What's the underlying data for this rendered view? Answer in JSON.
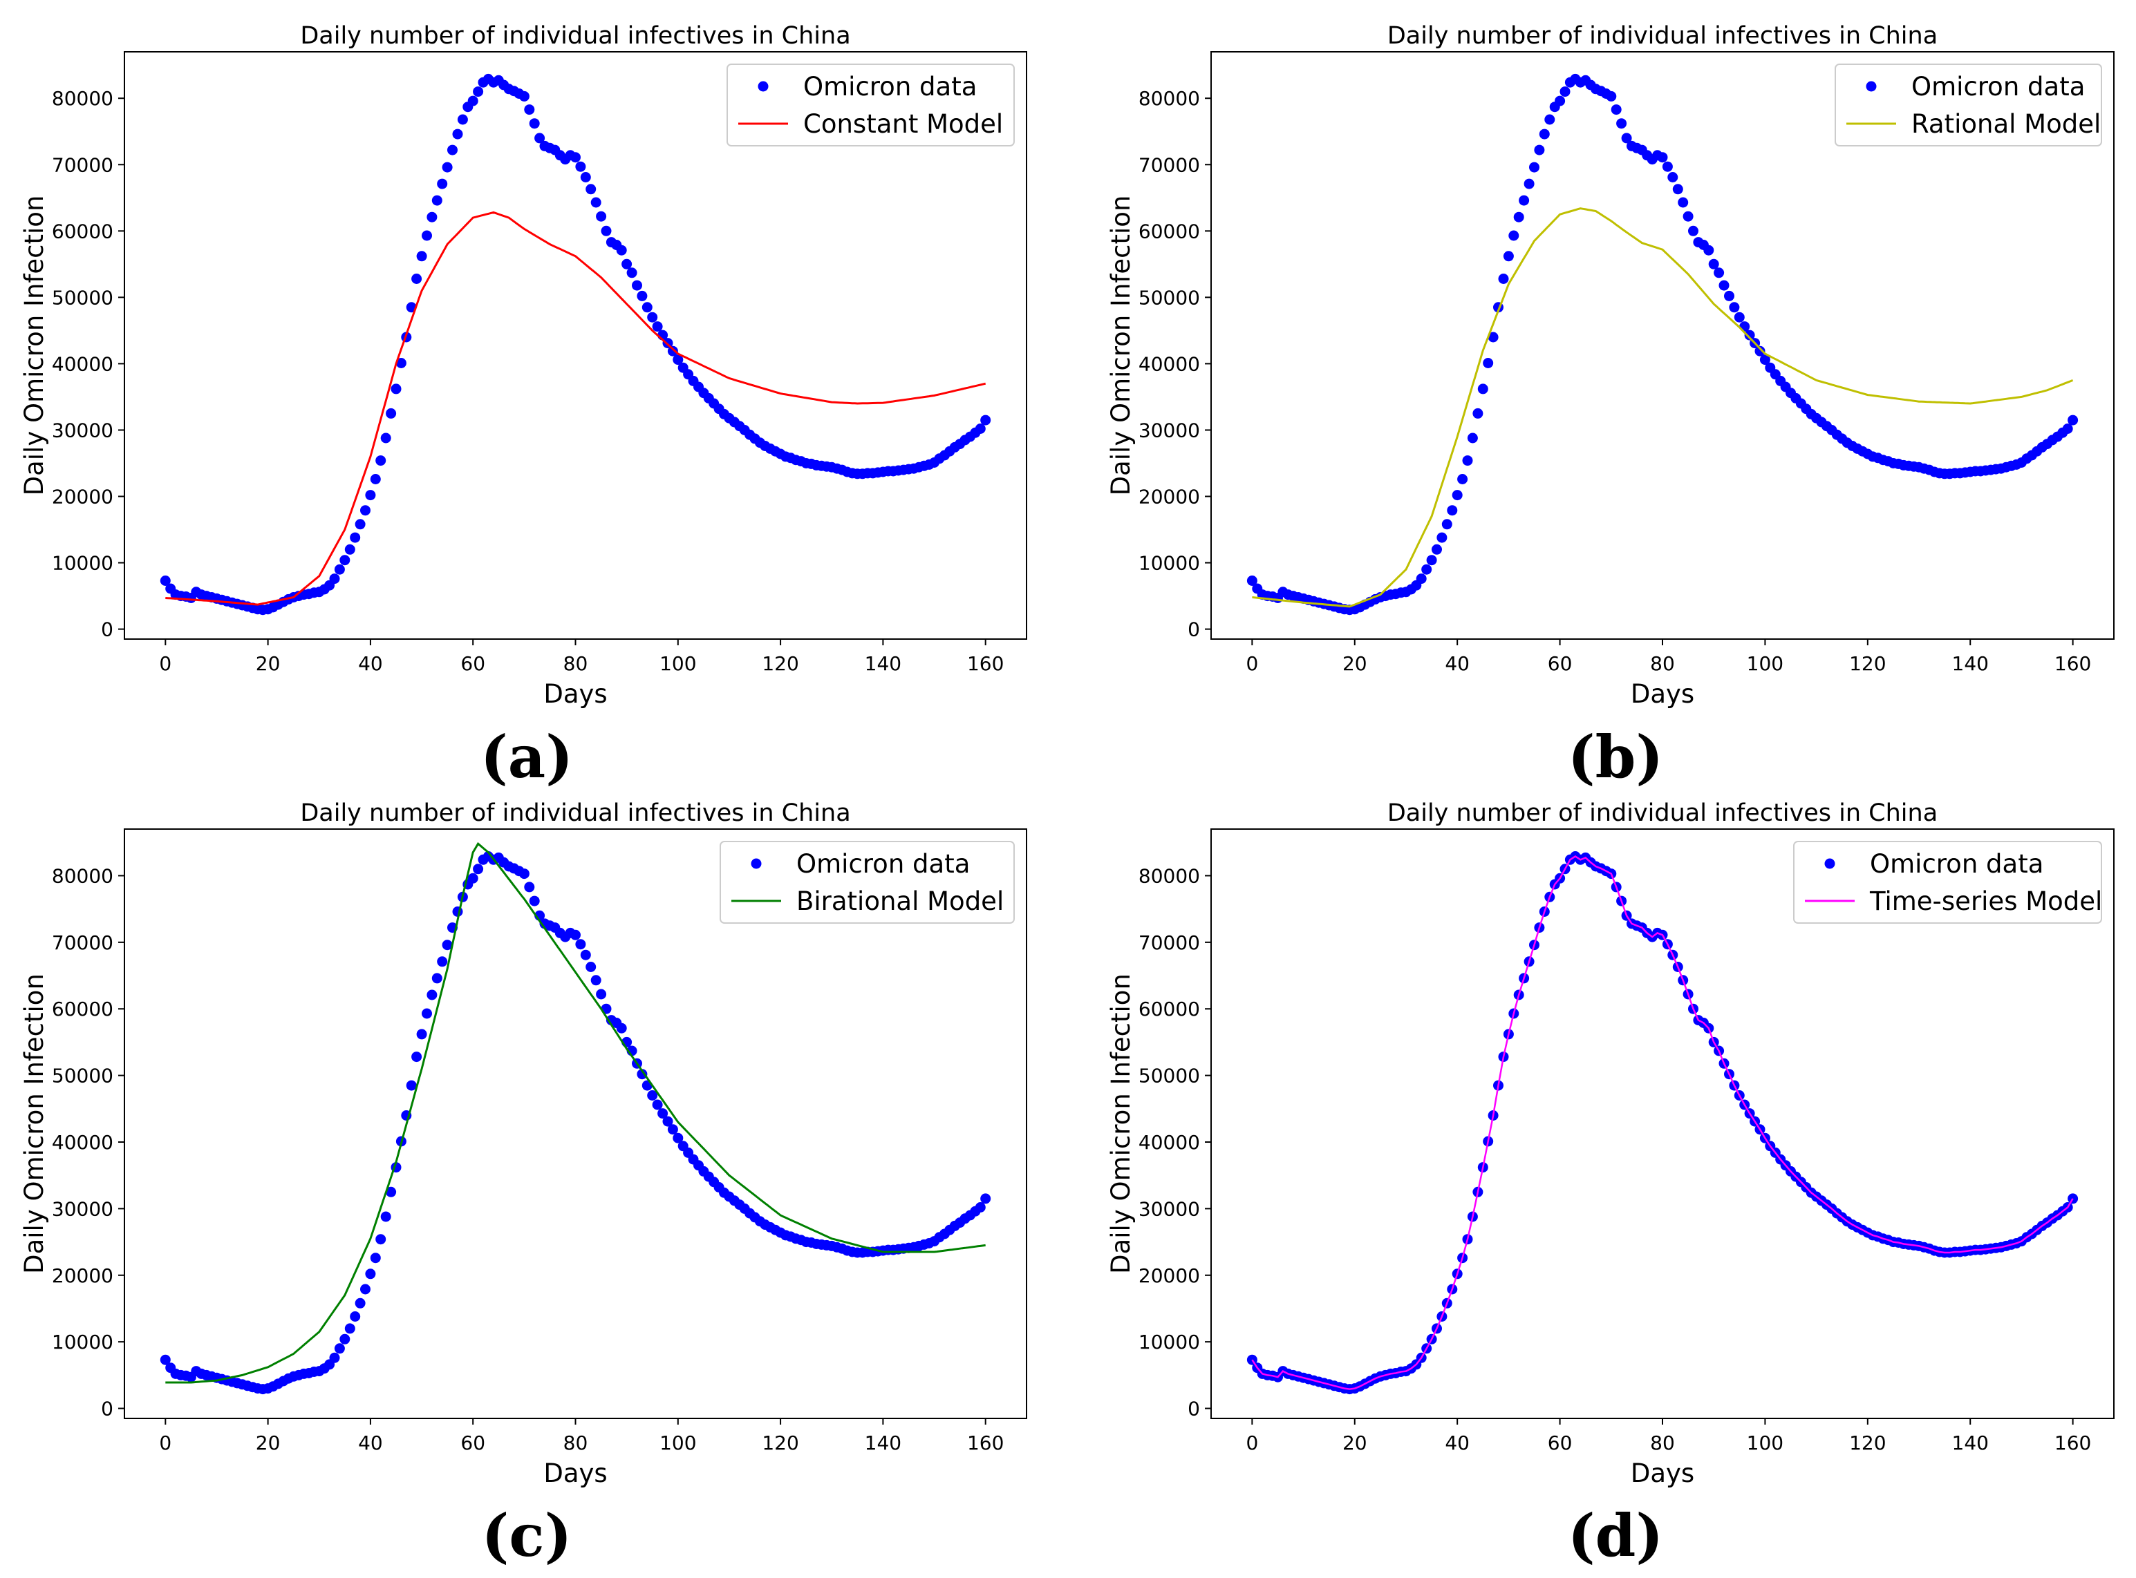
{
  "figure": {
    "captions": [
      "(a)",
      "(b)",
      "(c)",
      "(d)"
    ]
  },
  "colors": {
    "data_points": "#0000ff",
    "axis": "#000000"
  },
  "chart_data": [
    {
      "type": "line",
      "title": "Daily number of individual infectives in China",
      "xlabel": "Days",
      "ylabel": "Daily Omicron Infection",
      "xlim": [
        -8,
        168
      ],
      "ylim": [
        -1500,
        87000
      ],
      "xticks": [
        0,
        20,
        40,
        60,
        80,
        100,
        120,
        140,
        160
      ],
      "yticks": [
        0,
        10000,
        20000,
        30000,
        40000,
        50000,
        60000,
        70000,
        80000
      ],
      "legend": "top-right",
      "series": [
        {
          "name": "Omicron data",
          "kind": "points",
          "color": "#0000ff"
        },
        {
          "name": "Constant Model",
          "kind": "line",
          "color": "#ff0000",
          "x": [
            0,
            10,
            18,
            25,
            30,
            35,
            40,
            45,
            50,
            55,
            60,
            64,
            67,
            70,
            75,
            80,
            85,
            90,
            95,
            100,
            110,
            120,
            130,
            135,
            140,
            150,
            160
          ],
          "y": [
            4700,
            4200,
            3700,
            4800,
            8000,
            15000,
            26000,
            40000,
            51000,
            58000,
            62000,
            62800,
            62000,
            60300,
            58000,
            56200,
            53000,
            49000,
            45000,
            41500,
            37800,
            35500,
            34200,
            34000,
            34100,
            35200,
            37000
          ]
        }
      ]
    },
    {
      "type": "line",
      "title": "Daily number of individual infectives in China",
      "xlabel": "Days",
      "ylabel": "Daily Omicron Infection",
      "xlim": [
        -8,
        168
      ],
      "ylim": [
        -1500,
        87000
      ],
      "xticks": [
        0,
        20,
        40,
        60,
        80,
        100,
        120,
        140,
        160
      ],
      "yticks": [
        0,
        10000,
        20000,
        30000,
        40000,
        50000,
        60000,
        70000,
        80000
      ],
      "legend": "top-right",
      "series": [
        {
          "name": "Omicron data",
          "kind": "points",
          "color": "#0000ff"
        },
        {
          "name": "Rational Model",
          "kind": "line",
          "color": "#bfbf00",
          "x": [
            0,
            10,
            19,
            25,
            30,
            35,
            40,
            45,
            50,
            55,
            60,
            64,
            67,
            70,
            73,
            76,
            80,
            85,
            90,
            95,
            100,
            110,
            120,
            130,
            140,
            150,
            155,
            160
          ],
          "y": [
            4800,
            4000,
            3400,
            5200,
            9000,
            17000,
            29000,
            42000,
            52000,
            58500,
            62500,
            63400,
            63000,
            61500,
            59800,
            58200,
            57200,
            53500,
            49000,
            45500,
            41500,
            37500,
            35300,
            34300,
            34000,
            35000,
            36000,
            37500
          ]
        }
      ]
    },
    {
      "type": "line",
      "title": "Daily number of individual infectives in China",
      "xlabel": "Days",
      "ylabel": "Daily Omicron Infection",
      "xlim": [
        -8,
        168
      ],
      "ylim": [
        -1500,
        87000
      ],
      "xticks": [
        0,
        20,
        40,
        60,
        80,
        100,
        120,
        140,
        160
      ],
      "yticks": [
        0,
        10000,
        20000,
        30000,
        40000,
        50000,
        60000,
        70000,
        80000
      ],
      "legend": "top-right",
      "series": [
        {
          "name": "Omicron data",
          "kind": "points",
          "color": "#0000ff"
        },
        {
          "name": "Birational Model",
          "kind": "line",
          "color": "#008000",
          "x": [
            0,
            5,
            10,
            15,
            20,
            25,
            30,
            35,
            40,
            45,
            50,
            55,
            58,
            60,
            61,
            63,
            65,
            70,
            75,
            80,
            85,
            90,
            95,
            100,
            110,
            120,
            130,
            140,
            150,
            160
          ],
          "y": [
            3900,
            3900,
            4200,
            5000,
            6200,
            8200,
            11500,
            17000,
            25500,
            37000,
            51000,
            66000,
            77000,
            83500,
            84800,
            83500,
            81500,
            76500,
            71000,
            65500,
            60000,
            54000,
            48500,
            43000,
            35000,
            29000,
            25500,
            23500,
            23500,
            24500
          ]
        }
      ]
    },
    {
      "type": "line",
      "title": "Daily number of individual infectives in China",
      "xlabel": "Days",
      "ylabel": "Daily Omicron Infection",
      "xlim": [
        -8,
        168
      ],
      "ylim": [
        -1500,
        87000
      ],
      "xticks": [
        0,
        20,
        40,
        60,
        80,
        100,
        120,
        140,
        160
      ],
      "yticks": [
        0,
        10000,
        20000,
        30000,
        40000,
        50000,
        60000,
        70000,
        80000
      ],
      "legend": "top-right",
      "series": [
        {
          "name": "Omicron data",
          "kind": "points",
          "color": "#0000ff"
        },
        {
          "name": "Time-series Model",
          "kind": "line",
          "color": "#ff00ff",
          "follows": "Omicron data"
        }
      ]
    }
  ],
  "omicron_data": {
    "x": [
      0,
      1,
      2,
      3,
      4,
      5,
      6,
      7,
      8,
      9,
      10,
      11,
      12,
      13,
      14,
      15,
      16,
      17,
      18,
      19,
      20,
      21,
      22,
      23,
      24,
      25,
      26,
      27,
      28,
      29,
      30,
      31,
      32,
      33,
      34,
      35,
      36,
      37,
      38,
      39,
      40,
      41,
      42,
      43,
      44,
      45,
      46,
      47,
      48,
      49,
      50,
      51,
      52,
      53,
      54,
      55,
      56,
      57,
      58,
      59,
      60,
      61,
      62,
      63,
      64,
      65,
      66,
      67,
      68,
      69,
      70,
      71,
      72,
      73,
      74,
      75,
      76,
      77,
      78,
      79,
      80,
      81,
      82,
      83,
      84,
      85,
      86,
      87,
      88,
      89,
      90,
      91,
      92,
      93,
      94,
      95,
      96,
      97,
      98,
      99,
      100,
      101,
      102,
      103,
      104,
      105,
      106,
      107,
      108,
      109,
      110,
      111,
      112,
      113,
      114,
      115,
      116,
      117,
      118,
      119,
      120,
      121,
      122,
      123,
      124,
      125,
      126,
      127,
      128,
      129,
      130,
      131,
      132,
      133,
      134,
      135,
      136,
      137,
      138,
      139,
      140,
      141,
      142,
      143,
      144,
      145,
      146,
      147,
      148,
      149,
      150,
      151,
      152,
      153,
      154,
      155,
      156,
      157,
      158,
      159,
      160
    ],
    "y": [
      7300,
      6100,
      5200,
      5000,
      4900,
      4700,
      5600,
      5200,
      5000,
      4800,
      4600,
      4400,
      4200,
      4000,
      3800,
      3600,
      3400,
      3200,
      3000,
      2900,
      3000,
      3300,
      3700,
      4100,
      4500,
      4800,
      5000,
      5200,
      5300,
      5500,
      5600,
      6000,
      6600,
      7600,
      9000,
      10400,
      12000,
      13800,
      15800,
      17900,
      20200,
      22600,
      25400,
      28800,
      32500,
      36200,
      40100,
      44000,
      48500,
      52800,
      56200,
      59300,
      62100,
      64600,
      67100,
      69600,
      72200,
      74600,
      76800,
      78700,
      79600,
      81000,
      82400,
      82900,
      82400,
      82700,
      82000,
      81400,
      81100,
      80700,
      80300,
      78300,
      76200,
      74000,
      72800,
      72500,
      72200,
      71400,
      70800,
      71400,
      71100,
      69700,
      68100,
      66300,
      64300,
      62200,
      60000,
      58300,
      57900,
      57100,
      55000,
      53700,
      51800,
      50200,
      48500,
      47000,
      45600,
      44300,
      43100,
      41900,
      40600,
      39400,
      38400,
      37400,
      36500,
      35600,
      34800,
      34000,
      33200,
      32400,
      31800,
      31200,
      30600,
      30000,
      29300,
      28700,
      28100,
      27600,
      27200,
      26800,
      26400,
      26000,
      25800,
      25500,
      25300,
      25000,
      24900,
      24700,
      24600,
      24500,
      24400,
      24200,
      24000,
      23700,
      23500,
      23400,
      23400,
      23500,
      23500,
      23600,
      23700,
      23800,
      23800,
      23900,
      24000,
      24100,
      24200,
      24400,
      24600,
      24800,
      25100,
      25700,
      26200,
      26800,
      27400,
      27900,
      28500,
      29000,
      29600,
      30200,
      31500
    ]
  }
}
